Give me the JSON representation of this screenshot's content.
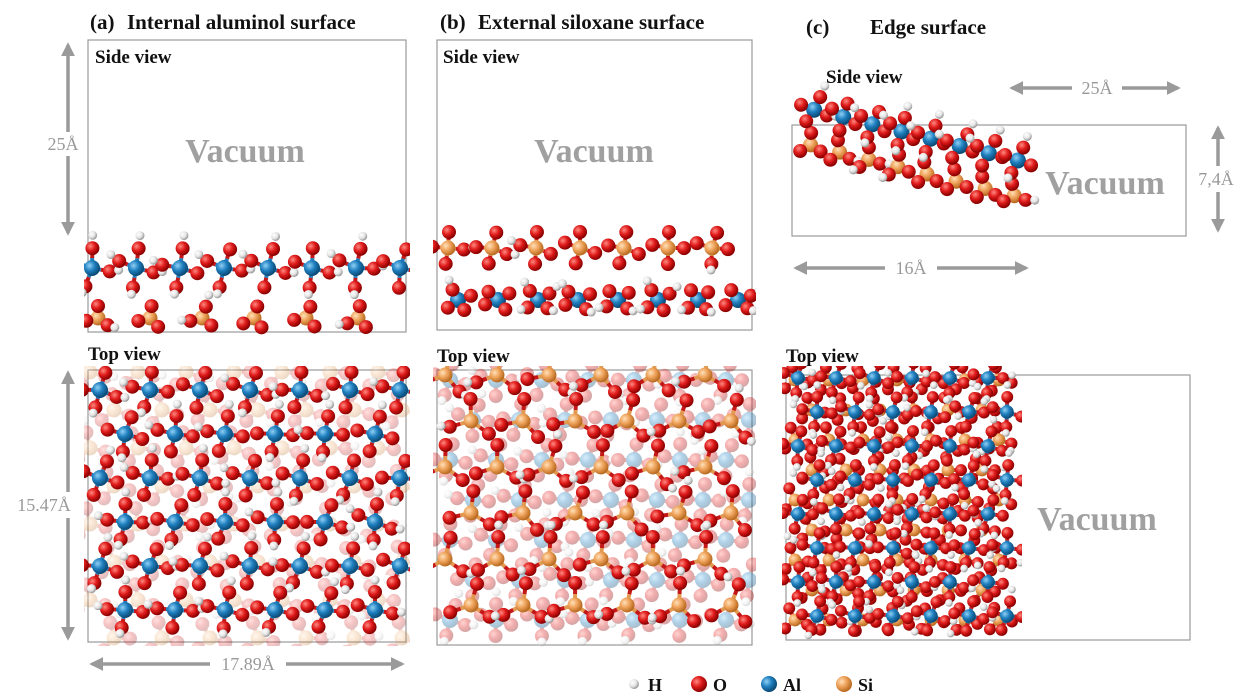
{
  "panels": [
    {
      "label": "(a)",
      "title": "Internal aluminol surface",
      "side_view": "Side view",
      "side_vacuum": "Vacuum",
      "side_dim": "25Å",
      "top_view": "Top view",
      "top_dim_v": "15.47Å",
      "top_dim_h": "17.89Å"
    },
    {
      "label": "(b)",
      "title": "External siloxane surface",
      "side_view": "Side view",
      "side_vacuum": "Vacuum",
      "top_view": "Top view"
    },
    {
      "label": "(c)",
      "title": "Edge surface",
      "side_view": "Side view",
      "side_vacuum": "Vacuum",
      "side_dim_h_top": "25Å",
      "side_dim_v": "7,4Å",
      "side_dim_h_bottom": "16Å",
      "top_view": "Top view",
      "top_vacuum": "Vacuum"
    }
  ],
  "legend": [
    "H",
    "O",
    "Al",
    "Si"
  ]
}
